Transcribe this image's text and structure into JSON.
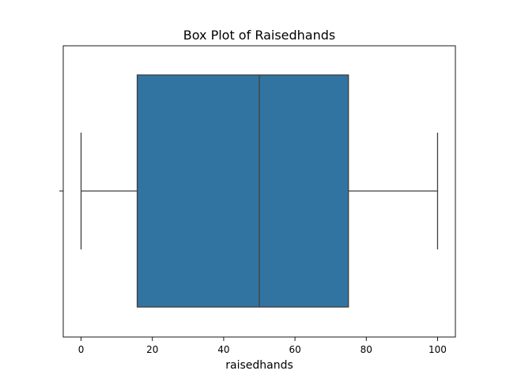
{
  "chart_data": {
    "type": "box",
    "title": "Box Plot of Raisedhands",
    "xlabel": "raisedhands",
    "ylabel": "",
    "xlim": [
      -5,
      105
    ],
    "xticks": [
      0,
      20,
      40,
      60,
      80,
      100
    ],
    "xtick_labels": [
      "0",
      "20",
      "40",
      "60",
      "80",
      "100"
    ],
    "grid": false,
    "series": [
      {
        "min": 0,
        "q1": 15.75,
        "median": 50,
        "q3": 75,
        "max": 100,
        "color": "#3274a1"
      }
    ]
  }
}
